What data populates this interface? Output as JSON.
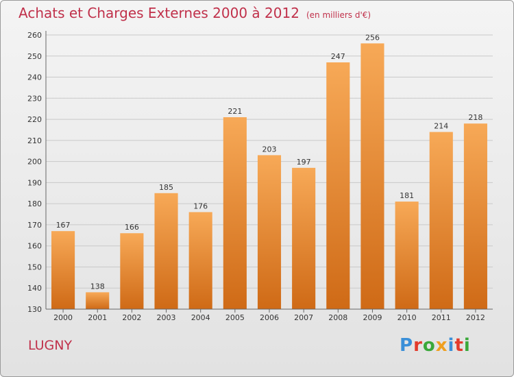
{
  "header": {
    "title": "Achats et Charges Externes 2000 à 2012",
    "subtitle": "(en milliers d'€)"
  },
  "footer": {
    "place": "LUGNY",
    "logo": [
      "P",
      "r",
      "o",
      "x",
      "i",
      "t",
      "i"
    ]
  },
  "colors": {
    "title": "#c0304a",
    "bar_top": "#f7a957",
    "bar_bottom": "#cf6a16",
    "logo": [
      "#3a8fd8",
      "#e23b2c",
      "#3aa83a",
      "#f0a020",
      "#3a8fd8",
      "#e23b2c",
      "#3aa83a"
    ]
  },
  "chart_data": {
    "type": "bar",
    "categories": [
      "2000",
      "2001",
      "2002",
      "2003",
      "2004",
      "2005",
      "2006",
      "2007",
      "2008",
      "2009",
      "2010",
      "2011",
      "2012"
    ],
    "values": [
      167,
      138,
      166,
      185,
      176,
      221,
      203,
      197,
      247,
      256,
      181,
      214,
      218
    ],
    "ylim": [
      130,
      260
    ],
    "yticks": [
      130,
      140,
      150,
      160,
      170,
      180,
      190,
      200,
      210,
      220,
      230,
      240,
      250,
      260
    ],
    "grid": true,
    "legend": "none"
  }
}
